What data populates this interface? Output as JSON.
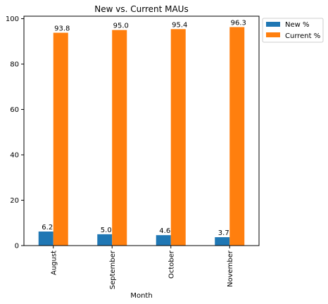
{
  "chart_data": {
    "type": "bar",
    "title": "New vs. Current MAUs",
    "xlabel": "Month",
    "ylabel": "",
    "categories": [
      "August",
      "September",
      "October",
      "November"
    ],
    "series": [
      {
        "name": "New %",
        "values": [
          6.2,
          5.0,
          4.6,
          3.7
        ],
        "labels": [
          "6.2",
          "5.0",
          "4.6",
          "3.7"
        ],
        "color": "#1f77b4"
      },
      {
        "name": "Current %",
        "values": [
          93.8,
          95.0,
          95.4,
          96.3
        ],
        "labels": [
          "93.8",
          "95.0",
          "95.4",
          "96.3"
        ],
        "color": "#ff7f0e"
      }
    ],
    "yticks": [
      0,
      20,
      40,
      60,
      80,
      100
    ],
    "ylim": [
      0,
      101.1
    ],
    "grid": false,
    "legend": "outside-top-right"
  }
}
